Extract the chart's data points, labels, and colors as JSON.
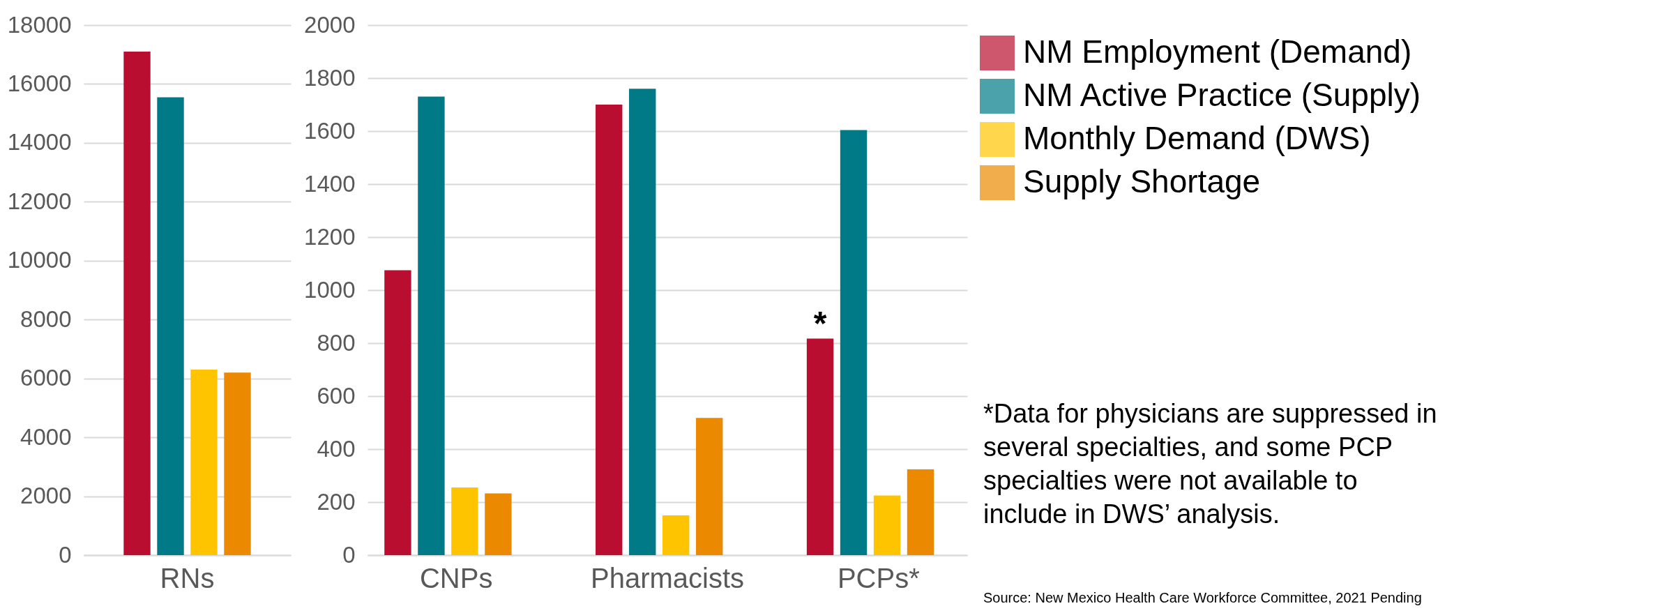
{
  "chart_data": [
    {
      "type": "bar",
      "categories": [
        "RNs"
      ],
      "ylim": [
        0,
        18000
      ],
      "yticks": [
        0,
        2000,
        4000,
        6000,
        8000,
        10000,
        12000,
        14000,
        16000,
        18000
      ],
      "grid": "y",
      "series": [
        {
          "color": "#b90e2f",
          "values": [
            17100
          ]
        },
        {
          "color": "#007a87",
          "values": [
            15550
          ]
        },
        {
          "color": "#ffc400",
          "values": [
            6300
          ]
        },
        {
          "color": "#eb8a00",
          "values": [
            6200
          ]
        }
      ]
    },
    {
      "type": "bar",
      "categories": [
        "CNPs",
        "Pharmacists",
        "PCPs*"
      ],
      "ylim": [
        0,
        2000
      ],
      "yticks": [
        0,
        200,
        400,
        600,
        800,
        1000,
        1200,
        1400,
        1600,
        1800,
        2000
      ],
      "grid": "y",
      "legend": "right",
      "series": [
        {
          "name": "NM Employment (Demand)",
          "color": "#b90e2f",
          "values": [
            1075,
            1700,
            817
          ]
        },
        {
          "name": "NM Active Practice (Supply)",
          "color": "#007a87",
          "values": [
            1730,
            1760,
            1604
          ]
        },
        {
          "name": "Monthly Demand (DWS)",
          "color": "#ffc400",
          "values": [
            255,
            150,
            225
          ]
        },
        {
          "name": "Supply Shortage",
          "color": "#eb8a00",
          "values": [
            233,
            518,
            324
          ]
        }
      ],
      "annotations": [
        "*",
        "*Data for physicians are suppressed in several specialties, and some PCP specialties were not available to include in DWS’ analysis.",
        "Source: New Mexico Health Care Workforce Committee, 2021 Pending"
      ]
    }
  ]
}
